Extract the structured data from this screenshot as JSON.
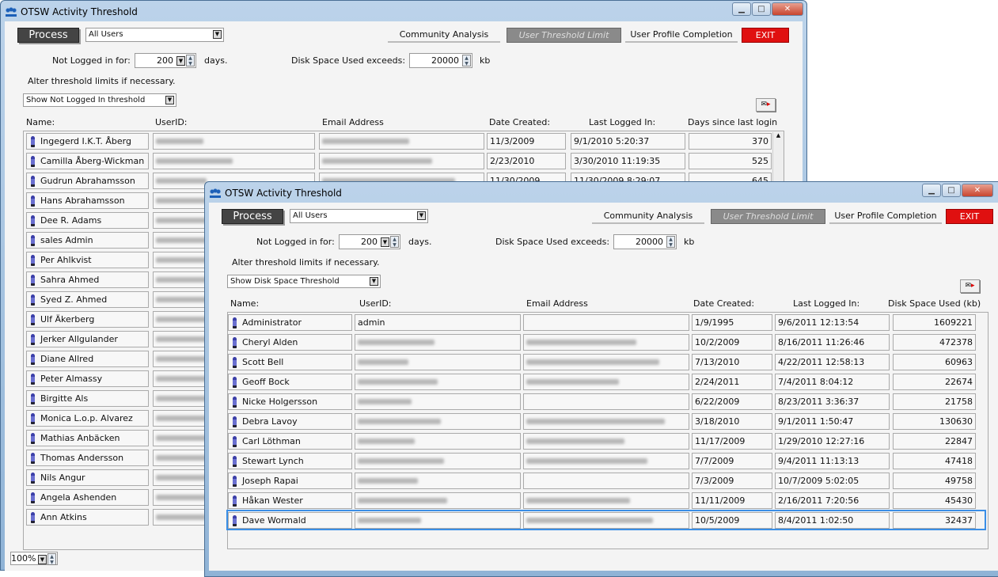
{
  "back": {
    "title": "OTSW Activity Threshold",
    "process_label": "Process",
    "user_filter": "All Users",
    "tabs": [
      "Community Analysis",
      "User Threshold Limit",
      "User Profile Completion",
      "EXIT"
    ],
    "not_logged_label": "Not Logged in for:",
    "not_logged_value": "200",
    "days_unit": "days.",
    "disk_label": "Disk Space Used exceeds:",
    "disk_value": "20000",
    "kb_unit": "kb",
    "alter_text": "Alter threshold limits if necessary.",
    "view_select": "Show Not Logged In threshold",
    "columns": [
      "Name:",
      "UserID:",
      "Email Address",
      "Date Created:",
      "Last Logged In:",
      "Days since last login"
    ],
    "rows": [
      {
        "name": "Ingegerd I.K.T. Åberg",
        "date": "11/3/2009",
        "last": "9/1/2010 5:20:37",
        "days": "370"
      },
      {
        "name": "Camilla Åberg-Wickman",
        "date": "2/23/2010",
        "last": "3/30/2010 11:19:35",
        "days": "525"
      },
      {
        "name": "Gudrun Abrahamsson",
        "date": "11/30/2009",
        "last": "11/30/2009 8:29:07",
        "days": "645"
      },
      {
        "name": "Hans Abrahamsson"
      },
      {
        "name": "Dee R. Adams"
      },
      {
        "name": "sales Admin"
      },
      {
        "name": "Per Ahlkvist"
      },
      {
        "name": "Sahra Ahmed"
      },
      {
        "name": "Syed Z. Ahmed"
      },
      {
        "name": "Ulf Äkerberg"
      },
      {
        "name": "Jerker Allgulander"
      },
      {
        "name": "Diane Allred"
      },
      {
        "name": "Peter Almassy"
      },
      {
        "name": "Birgitte Als"
      },
      {
        "name": "Monica L.o.p. Alvarez"
      },
      {
        "name": "Mathias Anbäcken"
      },
      {
        "name": "Thomas Andersson"
      },
      {
        "name": "Nils Angur"
      },
      {
        "name": "Angela Ashenden"
      },
      {
        "name": "Ann Atkins"
      }
    ],
    "zoom_value": "100%"
  },
  "front": {
    "title": "OTSW Activity Threshold",
    "process_label": "Process",
    "user_filter": "All Users",
    "tabs": [
      "Community Analysis",
      "User Threshold Limit",
      "User Profile Completion",
      "EXIT"
    ],
    "not_logged_label": "Not Logged in for:",
    "not_logged_value": "200",
    "days_unit": "days.",
    "disk_label": "Disk Space Used exceeds:",
    "disk_value": "20000",
    "kb_unit": "kb",
    "alter_text": "Alter threshold limits if necessary.",
    "view_select": "Show Disk Space Threshold",
    "columns": [
      "Name:",
      "UserID:",
      "Email Address",
      "Date Created:",
      "Last Logged In:",
      "Disk Space Used (kb)"
    ],
    "rows": [
      {
        "name": "Administrator",
        "userid": "admin",
        "email": "",
        "date": "1/9/1995",
        "last": "9/6/2011 12:13:54",
        "disk": "1609221"
      },
      {
        "name": "Cheryl Alden",
        "date": "10/2/2009",
        "last": "8/16/2011 11:26:46",
        "disk": "472378",
        "blur_email": true
      },
      {
        "name": "Scott Bell",
        "date": "7/13/2010",
        "last": "4/22/2011 12:58:13",
        "disk": "60963",
        "blur_email": true
      },
      {
        "name": "Geoff Bock",
        "date": "2/24/2011",
        "last": "7/4/2011 8:04:12",
        "disk": "22674",
        "blur_email": true
      },
      {
        "name": "Nicke Holgersson",
        "date": "6/22/2009",
        "last": "8/23/2011 3:36:37",
        "disk": "21758",
        "blur_email": false
      },
      {
        "name": "Debra Lavoy",
        "date": "3/18/2010",
        "last": "9/1/2011 1:50:47",
        "disk": "130630",
        "blur_email": true
      },
      {
        "name": "Carl Löthman",
        "date": "11/17/2009",
        "last": "1/29/2010 12:27:16",
        "disk": "22847",
        "blur_email": true
      },
      {
        "name": "Stewart Lynch",
        "date": "7/7/2009",
        "last": "9/4/2011 11:13:13",
        "disk": "47418",
        "blur_email": true
      },
      {
        "name": "Joseph Rapai",
        "date": "7/3/2009",
        "last": "10/7/2009 5:02:05",
        "disk": "49758",
        "blur_email": false
      },
      {
        "name": "Håkan Wester",
        "date": "11/11/2009",
        "last": "2/16/2011 7:20:56",
        "disk": "45430",
        "blur_email": true
      },
      {
        "name": "Dave Wormald",
        "date": "10/5/2009",
        "last": "8/4/2011 1:02:50",
        "disk": "32437",
        "blur_email": true,
        "selected": true
      }
    ]
  },
  "colors": {
    "exit": "#e01010",
    "active_tab": "#8a8a8a",
    "selection": "#3a8ee6"
  }
}
